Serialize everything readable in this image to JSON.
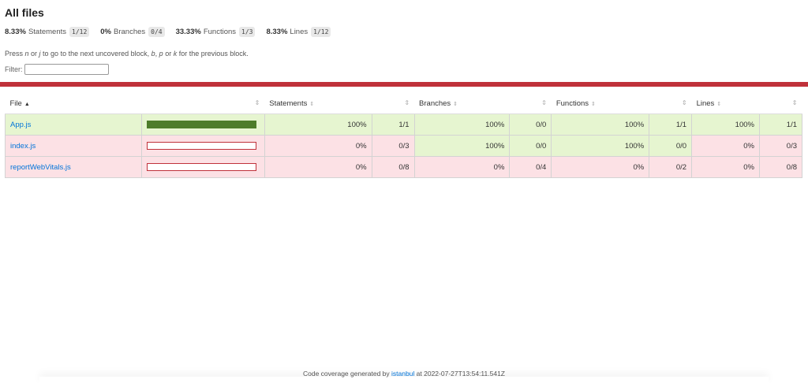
{
  "title": "All files",
  "summary": [
    {
      "pct": "8.33%",
      "label": "Statements",
      "fraction": "1/12"
    },
    {
      "pct": "0%",
      "label": "Branches",
      "fraction": "0/4"
    },
    {
      "pct": "33.33%",
      "label": "Functions",
      "fraction": "1/3"
    },
    {
      "pct": "8.33%",
      "label": "Lines",
      "fraction": "1/12"
    }
  ],
  "hint": {
    "p1": "Press ",
    "k1": "n",
    "p2": " or ",
    "k2": "j",
    "p3": " to go to the next uncovered block, ",
    "k3": "b",
    "p4": ", ",
    "k4": "p",
    "p5": " or ",
    "k5": "k",
    "p6": " for the previous block."
  },
  "filter": {
    "label": "Filter:",
    "value": ""
  },
  "table": {
    "headers": {
      "file": "File",
      "statements": "Statements",
      "branches": "Branches",
      "functions": "Functions",
      "lines": "Lines"
    },
    "rows": [
      {
        "file": "App.js",
        "coverage": 1.0,
        "st_pct": "100%",
        "st_frac": "1/1",
        "br_pct": "100%",
        "br_frac": "0/0",
        "fn_pct": "100%",
        "fn_frac": "1/1",
        "ln_pct": "100%",
        "ln_frac": "1/1"
      },
      {
        "file": "index.js",
        "coverage": 0.0,
        "st_pct": "0%",
        "st_frac": "0/3",
        "br_pct": "100%",
        "br_frac": "0/0",
        "fn_pct": "100%",
        "fn_frac": "0/0",
        "ln_pct": "0%",
        "ln_frac": "0/3"
      },
      {
        "file": "reportWebVitals.js",
        "coverage": 0.0,
        "st_pct": "0%",
        "st_frac": "0/8",
        "br_pct": "0%",
        "br_frac": "0/4",
        "fn_pct": "0%",
        "fn_frac": "0/2",
        "ln_pct": "0%",
        "ln_frac": "0/8"
      }
    ]
  },
  "footer": {
    "prefix": "Code coverage generated by ",
    "link": "istanbul",
    "suffix": " at 2022-07-27T13:54:11.541Z"
  },
  "colors": {
    "high": "#e6f5d0",
    "low": "#fce1e5",
    "status_bar": "#c0313a",
    "bar_fill": "#4d7c2a",
    "link": "#0074d9"
  }
}
